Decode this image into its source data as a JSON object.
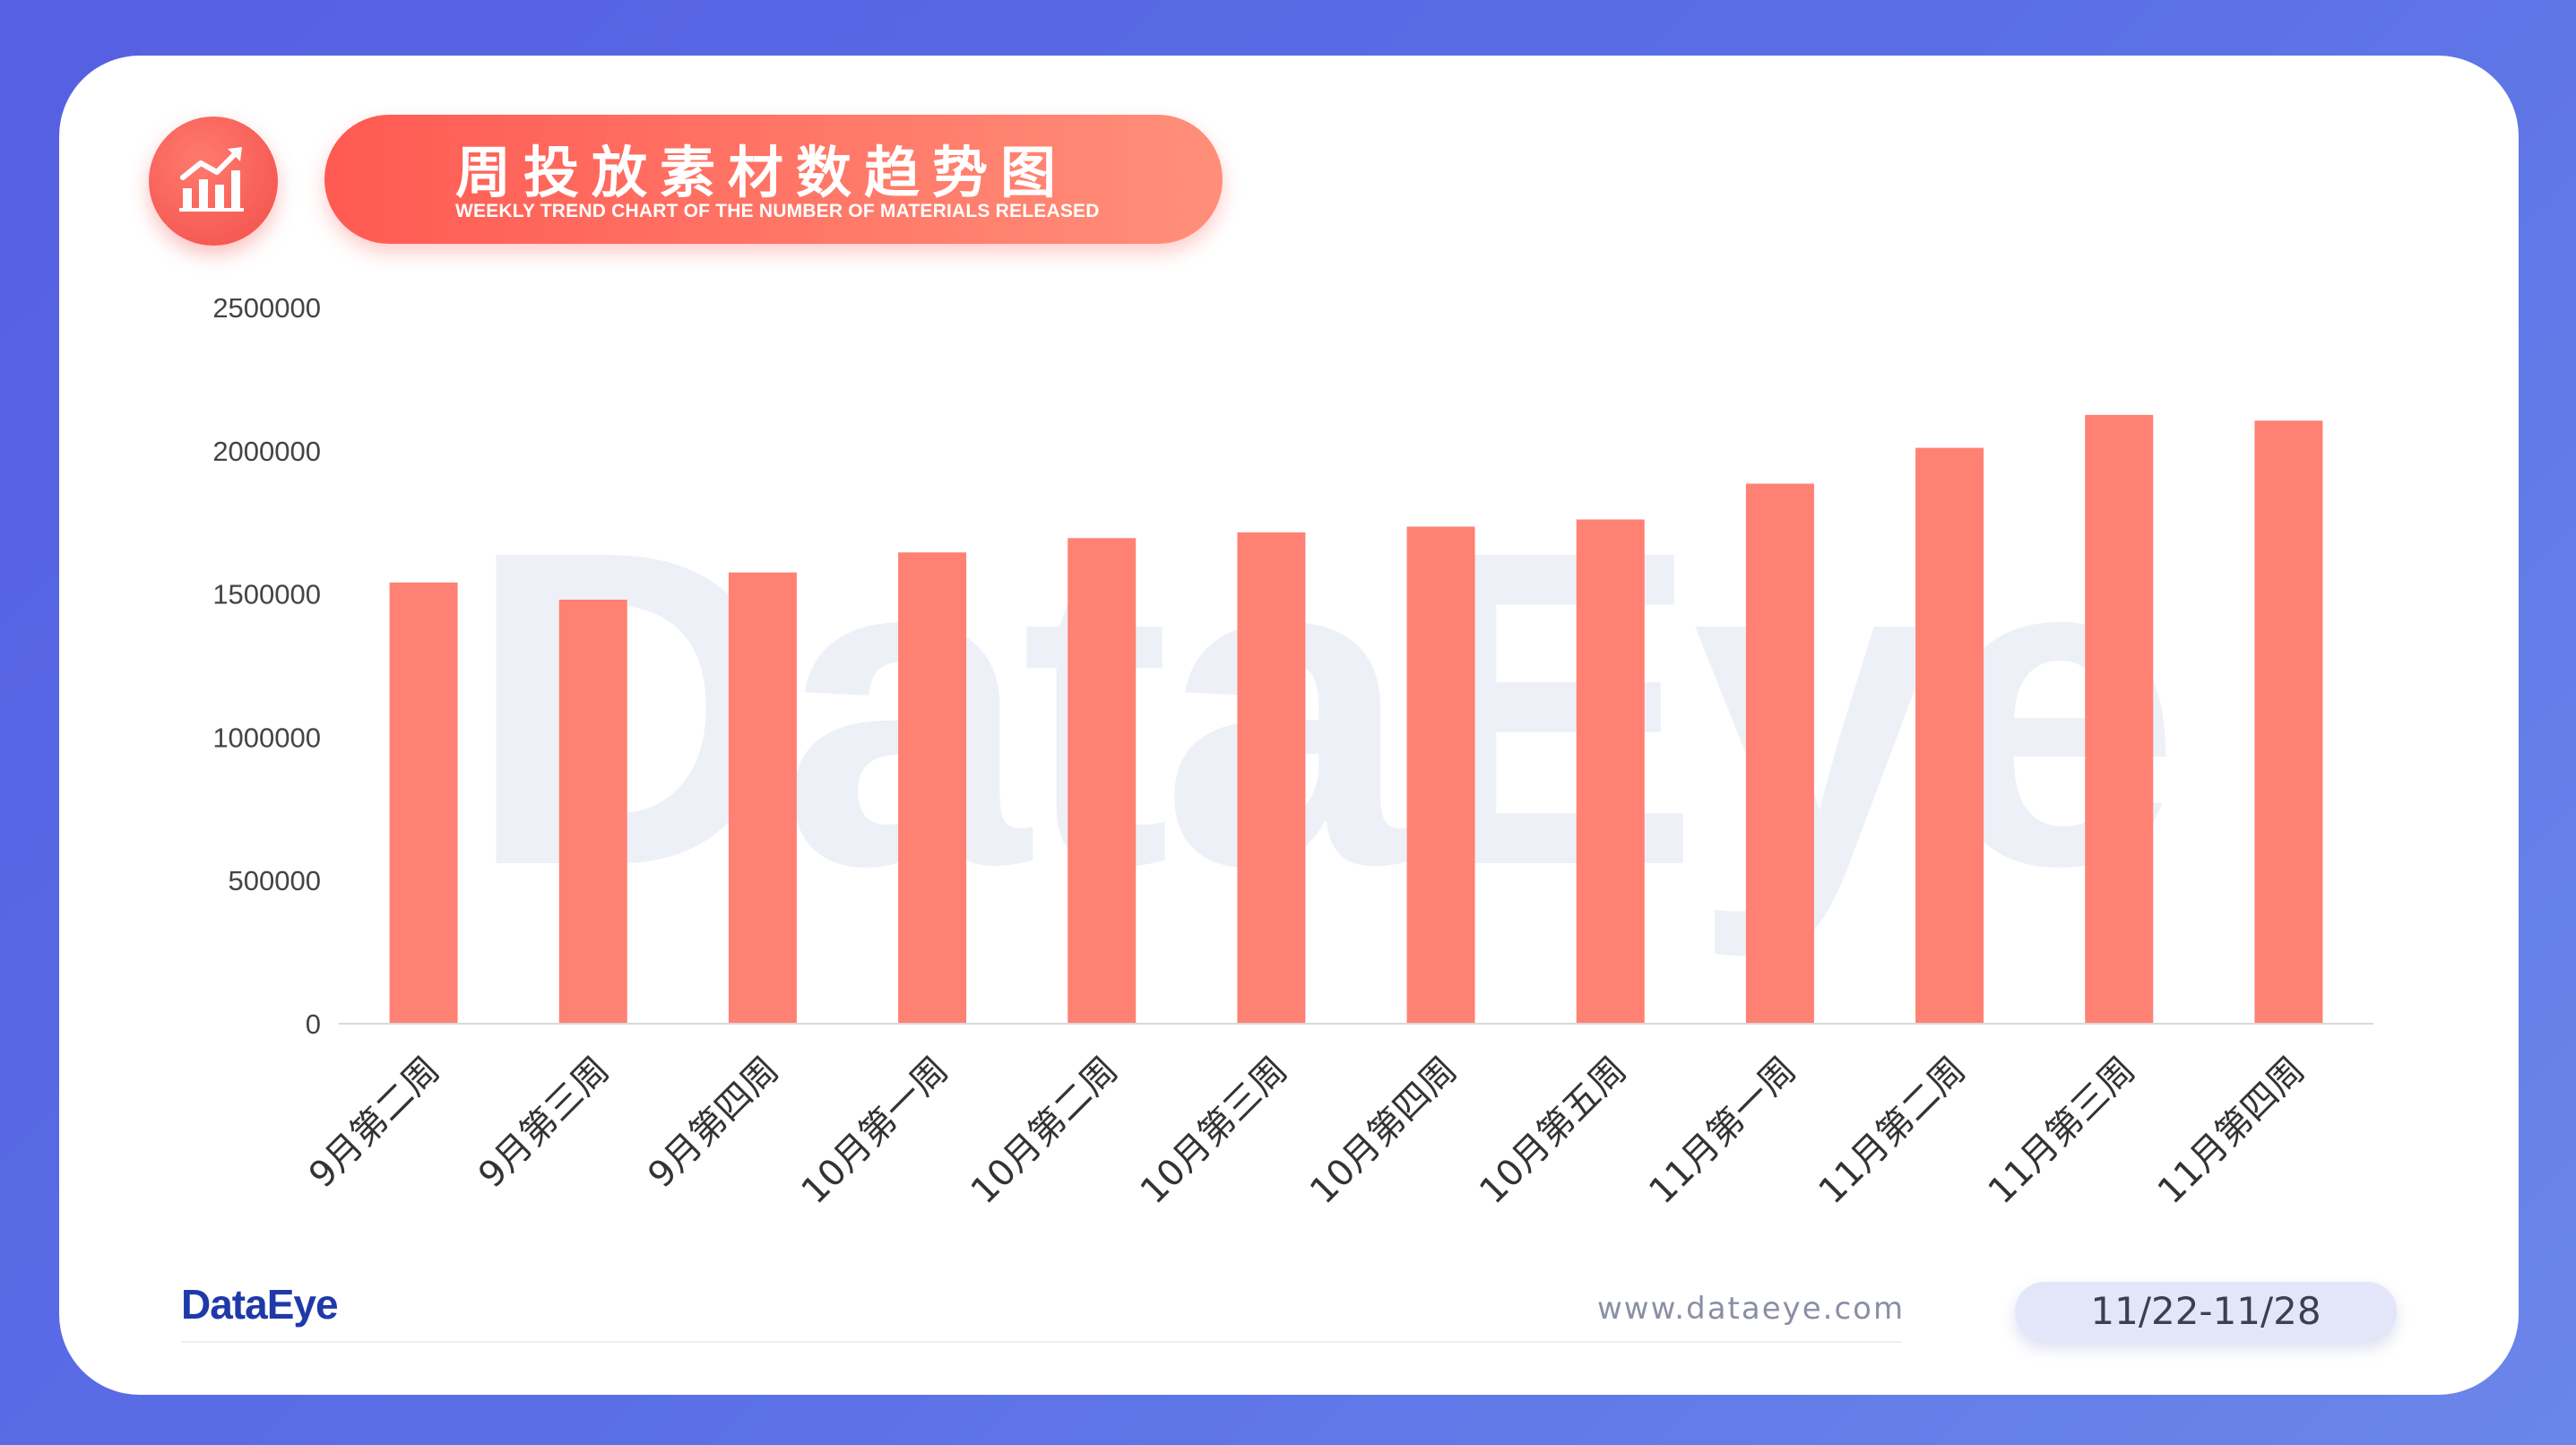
{
  "header": {
    "title_cn": "周投放素材数趋势图",
    "title_en": "WEEKLY TREND CHART OF THE NUMBER OF MATERIALS RELEASED",
    "icon": "bar-chart-trend-icon"
  },
  "watermark": "DataEye",
  "footer": {
    "brand": "DataEye",
    "url": "www.dataeye.com",
    "date_range": "11/22-11/28"
  },
  "colors": {
    "bar": "#ff8173",
    "accent_start": "#ff5a52",
    "accent_end": "#ff8f79",
    "background": "#5a6fe6"
  },
  "chart_data": {
    "type": "bar",
    "categories": [
      "9月第二周",
      "9月第三周",
      "9月第四周",
      "10月第一周",
      "10月第二周",
      "10月第三周",
      "10月第四周",
      "10月第五周",
      "11月第一周",
      "11月第二周",
      "11月第三周",
      "11月第四周"
    ],
    "values": [
      1540000,
      1480000,
      1575000,
      1645000,
      1695000,
      1715000,
      1735000,
      1760000,
      1885000,
      2010000,
      2125000,
      2105000
    ],
    "ylim": [
      0,
      2500000
    ],
    "yticks": [
      "0",
      "500000",
      "1000000",
      "1500000",
      "2000000",
      "2500000"
    ],
    "grid": false,
    "legend": "none"
  }
}
